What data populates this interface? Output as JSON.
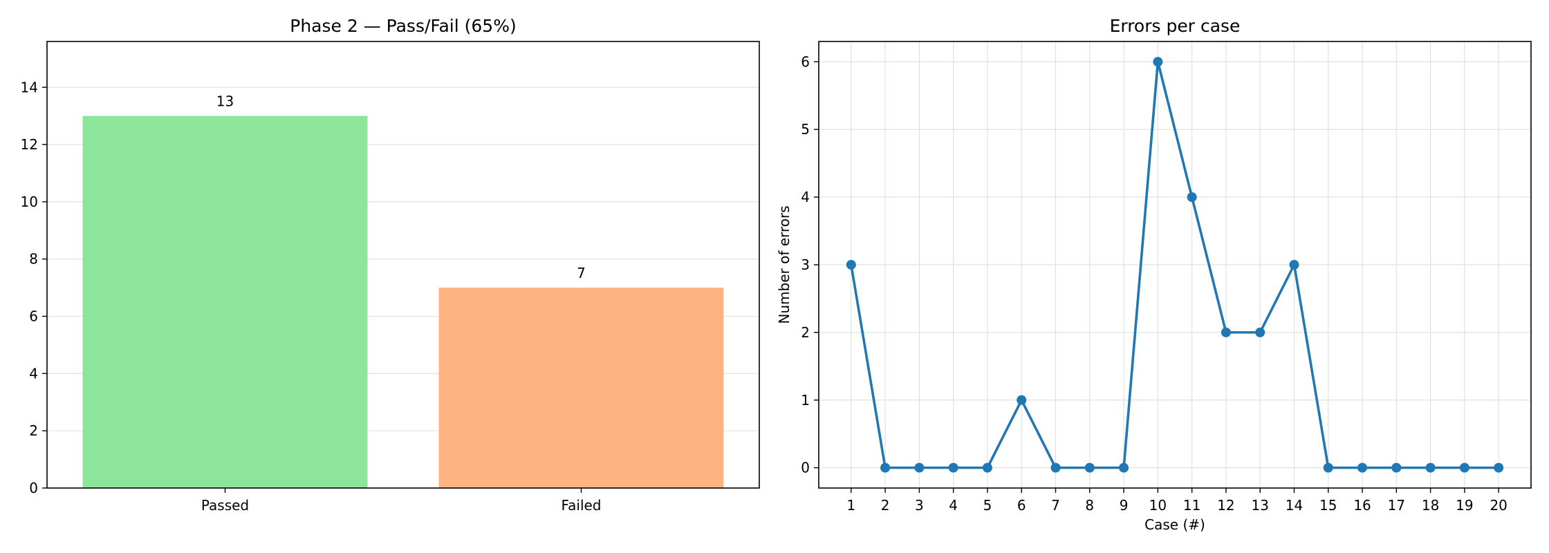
{
  "chart_data": [
    {
      "type": "bar",
      "title": "Phase 2 — Pass/Fail (65%)",
      "categories": [
        "Passed",
        "Failed"
      ],
      "values": [
        13,
        7
      ],
      "colors": [
        "#8de59c",
        "#ffb482"
      ],
      "ylim": [
        0,
        15.6
      ],
      "yticks": [
        0,
        2,
        4,
        6,
        8,
        10,
        12,
        14
      ],
      "xlabel": "",
      "ylabel": "",
      "grid": "y"
    },
    {
      "type": "line",
      "title": "Errors per case",
      "x": [
        1,
        2,
        3,
        4,
        5,
        6,
        7,
        8,
        9,
        10,
        11,
        12,
        13,
        14,
        15,
        16,
        17,
        18,
        19,
        20
      ],
      "values": [
        3,
        0,
        0,
        0,
        0,
        1,
        0,
        0,
        0,
        6,
        4,
        2,
        2,
        3,
        0,
        0,
        0,
        0,
        0,
        0
      ],
      "color": "#1f77b4",
      "xlim": [
        0.05,
        20.95
      ],
      "ylim": [
        -0.3,
        6.3
      ],
      "yticks": [
        0,
        1,
        2,
        3,
        4,
        5,
        6
      ],
      "xlabel": "Case (#)",
      "ylabel": "Number of errors",
      "grid": "both",
      "markers": true
    }
  ]
}
